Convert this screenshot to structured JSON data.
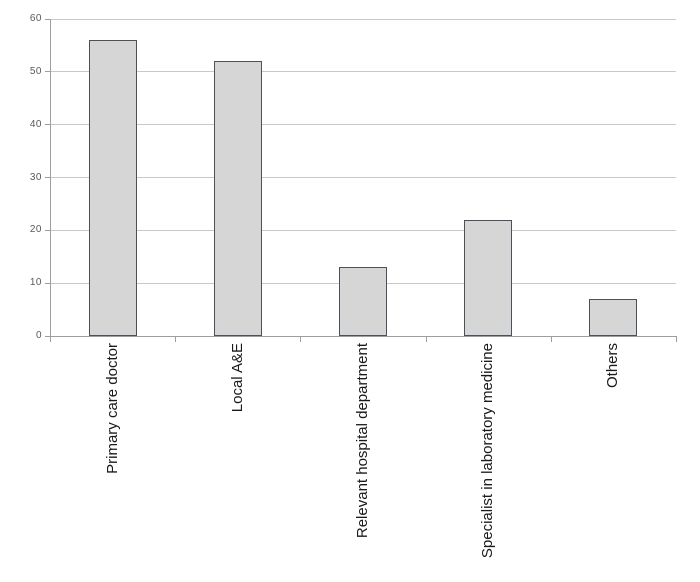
{
  "chart_data": {
    "type": "bar",
    "categories": [
      "Primary care doctor",
      "Local A&E",
      "Relevant hospital department",
      "Specialist in laboratory medicine",
      "Others"
    ],
    "values": [
      56,
      52,
      13,
      22,
      7
    ],
    "title": "",
    "xlabel": "",
    "ylabel": "",
    "ylim": [
      0,
      60
    ],
    "yticks": [
      0,
      10,
      20,
      30,
      40,
      50,
      60
    ],
    "grid": true,
    "legend": false,
    "colors": {
      "bar_fill": "#d6d6d6",
      "bar_border": "#4a5158",
      "gridline": "#c9c9c9",
      "axis": "#9e9e9e",
      "ytick_label": "#595959",
      "xcategory_label": "#1a1a1a",
      "background": "#ffffff"
    }
  }
}
